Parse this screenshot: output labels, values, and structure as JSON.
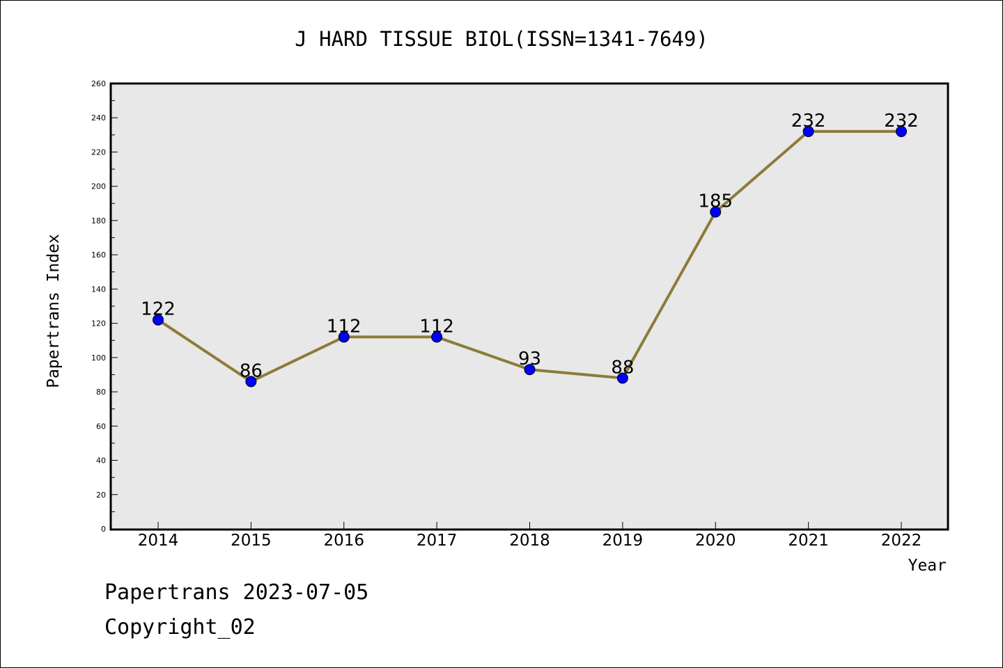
{
  "chart_data": {
    "type": "line",
    "title": "J HARD TISSUE BIOL(ISSN=1341-7649)",
    "xlabel": "Year",
    "ylabel": "Papertrans Index",
    "categories": [
      "2014",
      "2015",
      "2016",
      "2017",
      "2018",
      "2019",
      "2020",
      "2021",
      "2022"
    ],
    "values": [
      122,
      86,
      112,
      112,
      93,
      88,
      185,
      232,
      232
    ],
    "data_labels": [
      "122",
      "86",
      "112",
      "112",
      "93",
      "88",
      "185",
      "232",
      "232"
    ],
    "ylim": [
      0,
      260
    ],
    "yticks": [
      0,
      20,
      40,
      60,
      80,
      100,
      120,
      140,
      160,
      180,
      200,
      220,
      240,
      260
    ],
    "ytick_labels": [
      "0",
      "20",
      "40",
      "60",
      "80",
      "100",
      "120",
      "140",
      "160",
      "180",
      "200",
      "220",
      "240",
      "260"
    ],
    "grid": false,
    "colors": {
      "line": "#8c7b3a",
      "marker": "#0000ff",
      "plot_background": "#e8e8e8",
      "axis": "#000000"
    }
  },
  "footer": {
    "line1": "Papertrans 2023-07-05",
    "line2": "Copyright_02"
  }
}
